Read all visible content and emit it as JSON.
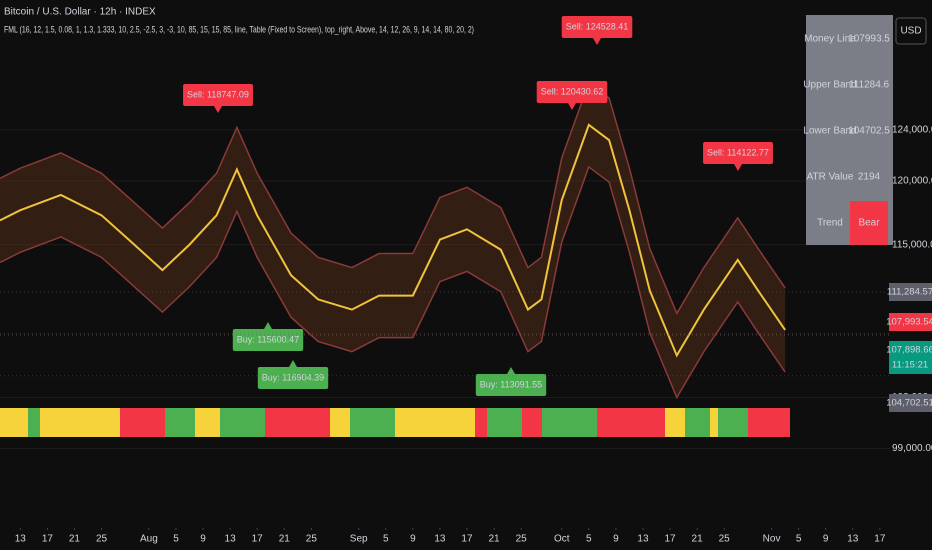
{
  "chart_data": {
    "type": "line",
    "title": "Bitcoin / U.S. Dollar · 12h · INDEX",
    "subtitle": "FML (16, 12, 1.5, 0.08, 1, 1.3, 1.333, 10, 2.5, -2.5, 3, -3, 10, 85, 15, 15, 85, line, Table (Fixed to Screen), top_right, Above, 14, 12, 26, 9, 14, 14, 80, 20, 2)",
    "currency": "USD",
    "x": [
      9,
      12,
      18,
      24,
      28,
      33,
      37,
      41,
      44,
      47,
      52,
      56,
      61,
      65,
      70,
      74,
      78,
      83,
      87,
      89,
      92,
      96,
      99,
      102,
      105,
      109,
      113,
      118,
      121,
      125
    ],
    "series": [
      {
        "name": "Upper Band",
        "color": "#8a3a3a",
        "values": [
          120200,
          121000,
          122200,
          120600,
          118700,
          116300,
          118300,
          120600,
          124200,
          120600,
          115900,
          114000,
          113200,
          114300,
          114300,
          118700,
          119500,
          117900,
          113200,
          114000,
          121800,
          127700,
          126500,
          121000,
          114700,
          109600,
          113200,
          117100,
          114700,
          111600
        ]
      },
      {
        "name": "Money Line",
        "color": "#f0c33c",
        "values": [
          116900,
          117700,
          118900,
          117300,
          115400,
          113000,
          115000,
          117300,
          120900,
          117300,
          112600,
          110700,
          109900,
          111000,
          111000,
          115400,
          116200,
          114600,
          109900,
          110700,
          118500,
          124400,
          123200,
          117700,
          111400,
          106300,
          109900,
          113800,
          111400,
          108300
        ]
      },
      {
        "name": "Lower Band",
        "color": "#8a3a3a",
        "values": [
          113600,
          114400,
          115600,
          114000,
          112100,
          109700,
          111700,
          114000,
          117600,
          114000,
          109300,
          107400,
          106600,
          107700,
          107700,
          112100,
          112900,
          111300,
          106600,
          107400,
          115200,
          121100,
          119900,
          114400,
          108100,
          103000,
          106600,
          110500,
          108100,
          105000
        ]
      }
    ],
    "xlim": [
      9,
      140.5
    ],
    "ylim": [
      92600,
      134200
    ],
    "xticks": [
      {
        "value": 12,
        "label": "13"
      },
      {
        "value": 16,
        "label": "17"
      },
      {
        "value": 20,
        "label": "21"
      },
      {
        "value": 24,
        "label": "25"
      },
      {
        "value": 31,
        "label": "Aug"
      },
      {
        "value": 35,
        "label": "5"
      },
      {
        "value": 39,
        "label": "9"
      },
      {
        "value": 43,
        "label": "13"
      },
      {
        "value": 47,
        "label": "17"
      },
      {
        "value": 51,
        "label": "21"
      },
      {
        "value": 55,
        "label": "25"
      },
      {
        "value": 62,
        "label": "Sep"
      },
      {
        "value": 66,
        "label": "5"
      },
      {
        "value": 70,
        "label": "9"
      },
      {
        "value": 74,
        "label": "13"
      },
      {
        "value": 78,
        "label": "17"
      },
      {
        "value": 82,
        "label": "21"
      },
      {
        "value": 86,
        "label": "25"
      },
      {
        "value": 92,
        "label": "Oct"
      },
      {
        "value": 96,
        "label": "5"
      },
      {
        "value": 100,
        "label": "9"
      },
      {
        "value": 104,
        "label": "13"
      },
      {
        "value": 108,
        "label": "17"
      },
      {
        "value": 112,
        "label": "21"
      },
      {
        "value": 116,
        "label": "25"
      },
      {
        "value": 123,
        "label": "Nov"
      },
      {
        "value": 127,
        "label": "5"
      },
      {
        "value": 131,
        "label": "9"
      },
      {
        "value": 135,
        "label": "13"
      },
      {
        "value": 139,
        "label": "17"
      }
    ],
    "yticks": [
      {
        "value": 124000,
        "label": "124,000.00"
      },
      {
        "value": 120000,
        "label": "120,000.00"
      },
      {
        "value": 115000,
        "label": "115,000.00"
      },
      {
        "value": 103000,
        "label": "103,000.00"
      },
      {
        "value": 99000,
        "label": "99,000.00"
      }
    ],
    "price_labels": [
      {
        "value": 111284.57,
        "label": "111,284.57"
      },
      {
        "value": 107993.54,
        "label": "107,993.54"
      },
      {
        "value": 107898.66,
        "label": "107,898.66"
      },
      {
        "value": 104702.51,
        "label": "104,702.51"
      }
    ],
    "countdown": "11:15:21",
    "signals": [
      "Sell: 118747.09",
      "Sell: 124528.41",
      "Sell: 120430.62",
      "Sell: 114122.77",
      "Buy: 115600.47",
      "Buy: 116904.39",
      "Buy: 113091.55"
    ],
    "table": {
      "rows": [
        [
          "Money Line",
          "107993.5"
        ],
        [
          "Upper Band",
          "111284.6"
        ],
        [
          "Lower Band",
          "104702.5"
        ],
        [
          "ATR Value",
          "2194"
        ],
        [
          "Trend",
          "Bear"
        ]
      ]
    }
  }
}
